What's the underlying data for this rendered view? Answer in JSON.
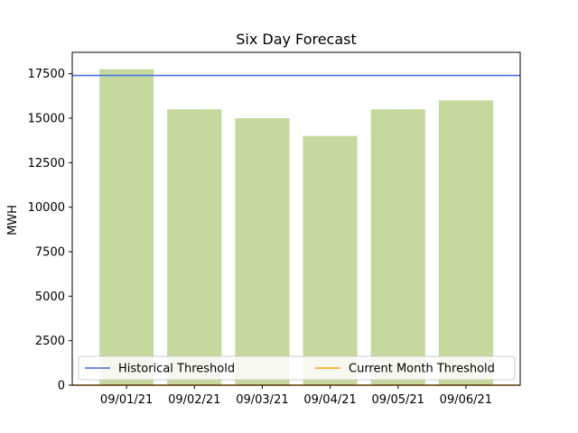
{
  "chart_data": {
    "type": "bar",
    "title": "Six Day Forecast",
    "xlabel": "",
    "ylabel": "MWH",
    "categories": [
      "09/01/21",
      "09/02/21",
      "09/03/21",
      "09/04/21",
      "09/05/21",
      "09/06/21"
    ],
    "values": [
      17750,
      15500,
      15000,
      14000,
      15500,
      16000
    ],
    "ylim": [
      0,
      18700
    ],
    "yticks": [
      0,
      2500,
      5000,
      7500,
      10000,
      12500,
      15000,
      17500
    ],
    "bar_color": "#c5d89d",
    "grid": false,
    "thresholds": [
      {
        "name": "Historical Threshold",
        "value": 17400,
        "color": "#4169e1"
      },
      {
        "name": "Current Month Threshold",
        "value": 0,
        "color": "#ffa500"
      }
    ],
    "legend": {
      "placement": "lower-center",
      "columns": 2
    }
  }
}
